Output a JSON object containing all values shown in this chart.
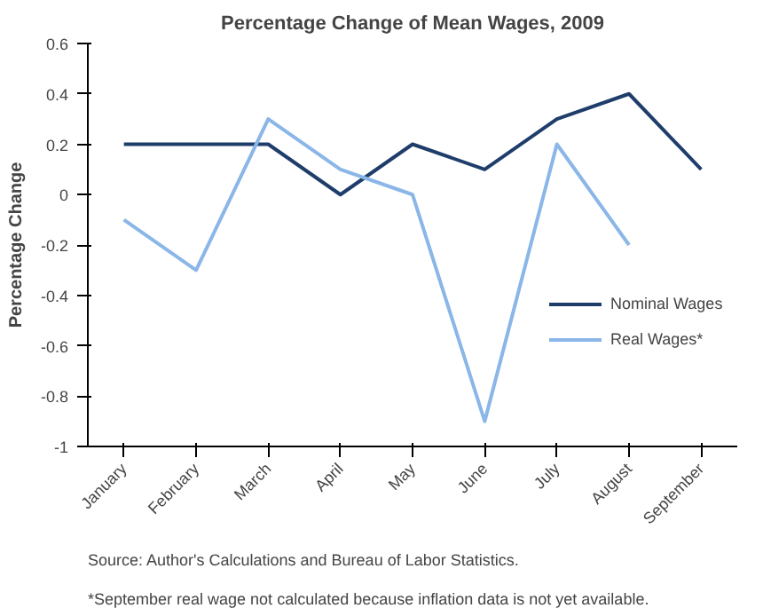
{
  "chart_data": {
    "type": "line",
    "title": "Percentage Change of Mean Wages, 2009",
    "ylabel": "Percentage Change",
    "categories": [
      "January",
      "February",
      "March",
      "April",
      "May",
      "June",
      "July",
      "August",
      "September"
    ],
    "series": [
      {
        "name": "Nominal Wages",
        "color": "#1f3d6b",
        "values": [
          0.2,
          0.2,
          0.2,
          0,
          0.2,
          0.1,
          0.3,
          0.4,
          0.1
        ]
      },
      {
        "name": "Real Wages*",
        "color": "#8ab6e8",
        "values": [
          -0.1,
          -0.3,
          0.3,
          0.1,
          0,
          -0.9,
          0.2,
          -0.2,
          null
        ]
      }
    ],
    "ylim": [
      -1,
      0.6
    ],
    "yticks": [
      -1,
      -0.8,
      -0.6,
      -0.4,
      -0.2,
      0,
      0.2,
      0.4,
      0.6
    ],
    "grid": false,
    "legend": "right",
    "marker": "none",
    "line_style": "solid",
    "annotations": [
      "Source: Author's Calculations and Bureau of Labor Statistics.",
      "*September real wage not calculated because inflation data is not yet available."
    ]
  }
}
